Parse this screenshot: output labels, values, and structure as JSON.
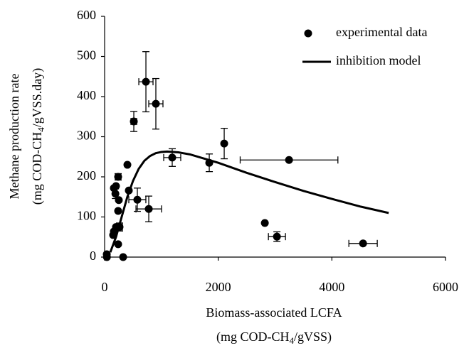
{
  "chart_data": {
    "type": "scatter",
    "x_label": [
      "Biomass-associated LCFA",
      "(mg COD-CH4/gVSS)"
    ],
    "y_label": [
      "Methane production rate",
      "(mg COD-CH4/gVSS.day)"
    ],
    "xlim": [
      0,
      6000
    ],
    "xticks": [
      0,
      2000,
      4000,
      6000
    ],
    "ylim": [
      0,
      600
    ],
    "yticks": [
      0,
      100,
      200,
      300,
      400,
      500,
      600
    ],
    "grid": false,
    "legend": "top-right",
    "series": [
      {
        "name": "experimental data",
        "type": "scatter",
        "color": "#000000",
        "x": [
          727,
          902,
          514,
          238,
          401,
          576,
          426,
          777,
          1190,
          1842,
          2105,
          3246,
          3033,
          2820,
          4549,
          163,
          200,
          190,
          250,
          238,
          263,
          163,
          150,
          238,
          326,
          38,
          40,
          200
        ],
        "values": [
          437,
          382,
          338,
          200,
          230,
          143,
          166,
          120,
          248,
          235,
          283,
          242,
          51,
          85,
          34,
          172,
          177,
          158,
          142,
          115,
          75,
          64,
          55,
          32,
          0,
          7,
          0,
          75
        ],
        "x_err": [
          125,
          125,
          50,
          50,
          null,
          150,
          null,
          225,
          150,
          null,
          null,
          860,
          150,
          null,
          250,
          null,
          null,
          null,
          null,
          null,
          50,
          null,
          null,
          null,
          null,
          null,
          null,
          null
        ],
        "y_err": [
          75,
          63,
          25,
          8,
          null,
          29,
          null,
          32,
          22,
          22,
          38,
          null,
          12,
          null,
          null,
          null,
          null,
          12,
          null,
          null,
          10,
          null,
          null,
          null,
          null,
          null,
          null,
          null
        ]
      },
      {
        "name": "inhibition model",
        "type": "line",
        "color": "#000000",
        "x": [
          100,
          200,
          300,
          400,
          500,
          600,
          700,
          800,
          900,
          1000,
          1100,
          1300,
          1500,
          2000,
          2500,
          3000,
          3500,
          4000,
          4500,
          5000
        ],
        "values": [
          12,
          50,
          100,
          150,
          190,
          220,
          240,
          252,
          259,
          262,
          263,
          261,
          256,
          235,
          210,
          187,
          165,
          145,
          126,
          110
        ]
      }
    ]
  }
}
